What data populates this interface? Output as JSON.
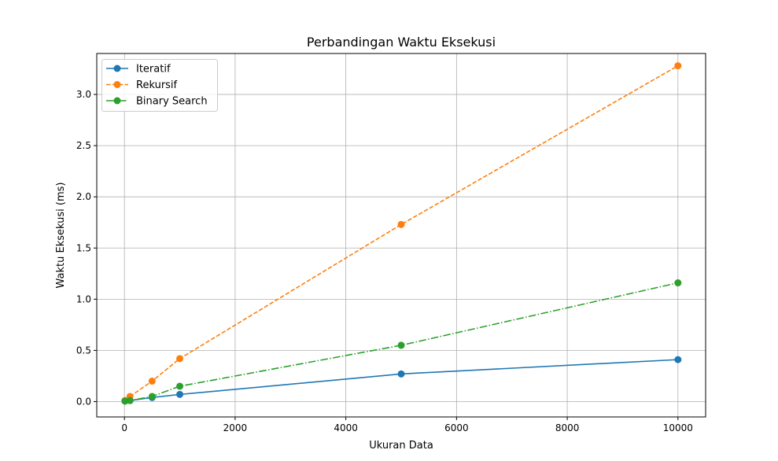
{
  "chart_data": {
    "type": "line",
    "title": "Perbandingan Waktu Eksekusi",
    "xlabel": "Ukuran Data",
    "ylabel": "Waktu Eksekusi (ms)",
    "xlim": [
      -500,
      10500
    ],
    "ylim": [
      -0.15,
      3.4
    ],
    "xticks": [
      0,
      2000,
      4000,
      6000,
      8000,
      10000
    ],
    "yticks": [
      0.0,
      0.5,
      1.0,
      1.5,
      2.0,
      2.5,
      3.0
    ],
    "xtick_labels": [
      "0",
      "2000",
      "4000",
      "6000",
      "8000",
      "10000"
    ],
    "ytick_labels": [
      "0.0",
      "0.5",
      "1.0",
      "1.5",
      "2.0",
      "2.5",
      "3.0"
    ],
    "grid": true,
    "legend_position": "top-left",
    "series": [
      {
        "name": "Iteratif",
        "color": "#1f77b4",
        "linestyle": "solid",
        "marker": "circle",
        "x": [
          10,
          100,
          500,
          1000,
          5000,
          10000
        ],
        "y": [
          0.005,
          0.01,
          0.04,
          0.07,
          0.27,
          0.41
        ]
      },
      {
        "name": "Rekursif",
        "color": "#ff7f0e",
        "linestyle": "dashed",
        "marker": "circle",
        "x": [
          10,
          100,
          500,
          1000,
          5000,
          10000
        ],
        "y": [
          0.01,
          0.05,
          0.2,
          0.42,
          1.73,
          3.28
        ]
      },
      {
        "name": "Binary Search",
        "color": "#2ca02c",
        "linestyle": "dashdot",
        "marker": "circle",
        "x": [
          10,
          100,
          500,
          1000,
          5000,
          10000
        ],
        "y": [
          0.005,
          0.01,
          0.05,
          0.15,
          0.55,
          1.16
        ]
      }
    ]
  }
}
